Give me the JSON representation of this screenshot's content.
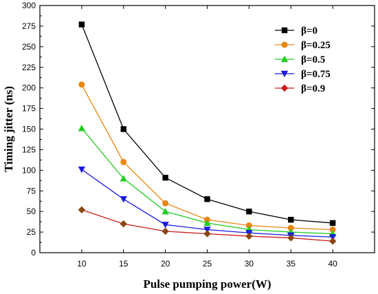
{
  "chart_data": {
    "type": "line",
    "title": "",
    "xlabel": "Pulse pumping power(W)",
    "ylabel": "Timing jitter (ns)",
    "x": [
      10,
      15,
      20,
      25,
      30,
      35,
      40
    ],
    "xlim": [
      5,
      45
    ],
    "ylim": [
      0,
      300
    ],
    "xticks": [
      10,
      15,
      20,
      25,
      30,
      35,
      40
    ],
    "yticks": [
      0,
      25,
      50,
      75,
      100,
      125,
      150,
      175,
      200,
      225,
      250,
      275,
      300
    ],
    "grid": false,
    "legend_position": "top-right",
    "series": [
      {
        "name": "β=0",
        "marker": "square",
        "color": "#000000",
        "values": [
          277,
          150,
          91,
          65,
          50,
          40,
          36
        ]
      },
      {
        "name": "β=0.25",
        "marker": "circle",
        "color": "#e8860f",
        "values": [
          204,
          110,
          60,
          40,
          33,
          30,
          28
        ]
      },
      {
        "name": "β=0.5",
        "marker": "triangle-up",
        "color": "#22cc22",
        "values": [
          151,
          90,
          50,
          36,
          28,
          25,
          23
        ]
      },
      {
        "name": "β=0.75",
        "marker": "triangle-down",
        "color": "#1a1ae0",
        "values": [
          101,
          65,
          34,
          28,
          24,
          21,
          19
        ]
      },
      {
        "name": "β=0.9",
        "marker": "diamond",
        "color": "#cc1a1a",
        "point_color": "#8b4513",
        "values": [
          52,
          35,
          26,
          23,
          20,
          18,
          14
        ]
      }
    ]
  }
}
